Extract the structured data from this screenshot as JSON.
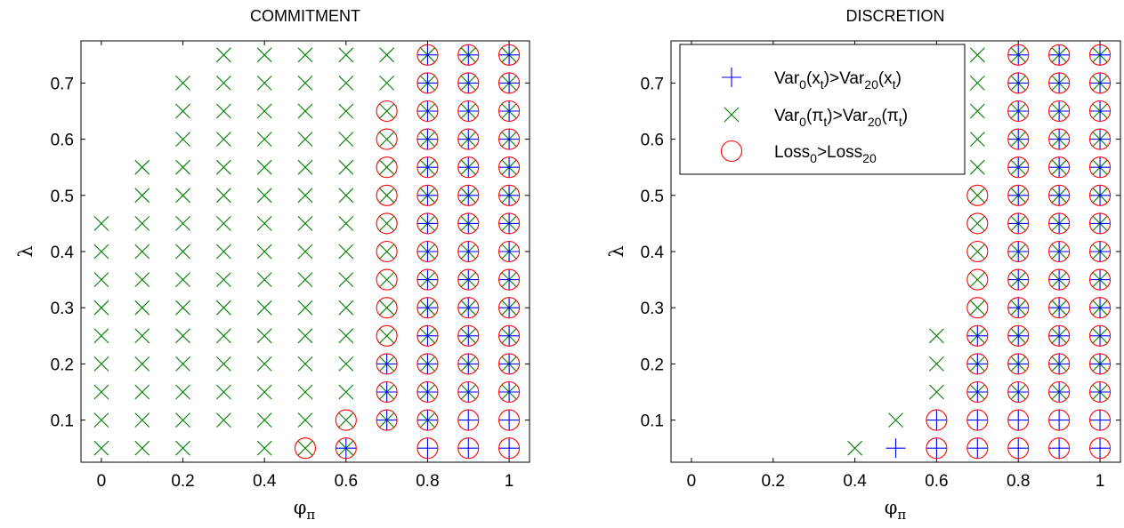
{
  "legend": {
    "entries": [
      {
        "series": "plus",
        "main1": "Var",
        "sub1": "0",
        "mid1": "(x",
        "sub2": "t",
        "mid2": ")>Var",
        "sub3": "20",
        "mid3": "(x",
        "sub4": "t",
        "end": ")"
      },
      {
        "series": "cross",
        "main1": "Var",
        "sub1": "0",
        "mid1": "(π",
        "sub2": "t",
        "mid2": ")>Var",
        "sub3": "20",
        "mid3": "(π",
        "sub4": "t",
        "end": ")"
      },
      {
        "series": "circle",
        "main1": "Loss",
        "sub1": "0",
        "mid1": ">Loss",
        "sub2": "20",
        "mid2": "",
        "sub3": "",
        "mid3": "",
        "sub4": "",
        "end": ""
      }
    ]
  },
  "chart_data": [
    {
      "type": "scatter",
      "title": "COMMITMENT",
      "xlabel": "φ",
      "xlabel_sub": "π",
      "ylabel": "λ",
      "xlim": [
        -0.05,
        1.05
      ],
      "ylim": [
        0.025,
        0.775
      ],
      "xticks": [
        0,
        0.2,
        0.4,
        0.6,
        0.8,
        1
      ],
      "xtick_labels": [
        "0",
        "0.2",
        "0.4",
        "0.6",
        "0.8",
        "1"
      ],
      "yticks": [
        0.1,
        0.2,
        0.3,
        0.4,
        0.5,
        0.6,
        0.7
      ],
      "ytick_labels": [
        "0.1",
        "0.2",
        "0.3",
        "0.4",
        "0.5",
        "0.6",
        "0.7"
      ],
      "grid": false,
      "legend": "none",
      "lambda_grid": [
        0.05,
        0.1,
        0.15,
        0.2,
        0.25,
        0.3,
        0.35,
        0.4,
        0.45,
        0.5,
        0.55,
        0.6,
        0.65,
        0.7,
        0.75
      ],
      "series": [
        {
          "name": "plus",
          "marker": "+",
          "color": "#0000ff",
          "points": [
            [
              0.6,
              [
                0.05
              ]
            ],
            [
              0.7,
              [
                0.1,
                0.15,
                0.2
              ]
            ],
            [
              0.8,
              [
                0.05,
                0.1,
                0.15,
                0.2,
                0.25,
                0.3,
                0.35,
                0.4,
                0.45,
                0.5,
                0.55,
                0.6,
                0.65,
                0.7,
                0.75
              ]
            ],
            [
              0.9,
              [
                0.05,
                0.1,
                0.15,
                0.2,
                0.25,
                0.3,
                0.35,
                0.4,
                0.45,
                0.5,
                0.55,
                0.6,
                0.65,
                0.7,
                0.75
              ]
            ],
            [
              1.0,
              [
                0.05,
                0.1,
                0.15,
                0.2,
                0.25,
                0.3,
                0.35,
                0.4,
                0.45,
                0.5,
                0.55,
                0.6,
                0.65,
                0.7,
                0.75
              ]
            ]
          ]
        },
        {
          "name": "cross",
          "marker": "x",
          "color": "#008000",
          "points": [
            [
              0.0,
              [
                0.05,
                0.1,
                0.15,
                0.2,
                0.25,
                0.3,
                0.35,
                0.4,
                0.45
              ]
            ],
            [
              0.1,
              [
                0.05,
                0.1,
                0.15,
                0.2,
                0.25,
                0.3,
                0.35,
                0.4,
                0.45,
                0.5,
                0.55
              ]
            ],
            [
              0.2,
              [
                0.05,
                0.1,
                0.15,
                0.2,
                0.25,
                0.3,
                0.35,
                0.4,
                0.45,
                0.5,
                0.55,
                0.6,
                0.65,
                0.7
              ]
            ],
            [
              0.3,
              [
                0.1,
                0.15,
                0.2,
                0.25,
                0.3,
                0.35,
                0.4,
                0.45,
                0.5,
                0.55,
                0.6,
                0.65,
                0.7,
                0.75
              ]
            ],
            [
              0.4,
              [
                0.05,
                0.1,
                0.15,
                0.2,
                0.25,
                0.3,
                0.35,
                0.4,
                0.45,
                0.5,
                0.55,
                0.6,
                0.65,
                0.7,
                0.75
              ]
            ],
            [
              0.5,
              [
                0.05,
                0.1,
                0.15,
                0.2,
                0.25,
                0.3,
                0.35,
                0.4,
                0.45,
                0.5,
                0.55,
                0.6,
                0.65,
                0.7,
                0.75
              ]
            ],
            [
              0.6,
              [
                0.05,
                0.1,
                0.15,
                0.2,
                0.25,
                0.3,
                0.35,
                0.4,
                0.45,
                0.5,
                0.55,
                0.6,
                0.65,
                0.7,
                0.75
              ]
            ],
            [
              0.7,
              [
                0.1,
                0.15,
                0.2,
                0.25,
                0.3,
                0.35,
                0.4,
                0.45,
                0.5,
                0.55,
                0.6,
                0.65,
                0.7,
                0.75
              ]
            ],
            [
              0.8,
              [
                0.1,
                0.15,
                0.2,
                0.25,
                0.3,
                0.35,
                0.4,
                0.45,
                0.5,
                0.55,
                0.6,
                0.65,
                0.7,
                0.75
              ]
            ],
            [
              0.9,
              [
                0.15,
                0.2,
                0.25,
                0.3,
                0.35,
                0.4,
                0.45,
                0.5,
                0.55,
                0.6,
                0.65,
                0.7,
                0.75
              ]
            ],
            [
              1.0,
              [
                0.15,
                0.2,
                0.25,
                0.3,
                0.35,
                0.4,
                0.45,
                0.5,
                0.55,
                0.6,
                0.65,
                0.7,
                0.75
              ]
            ]
          ]
        },
        {
          "name": "circle",
          "marker": "o",
          "color": "#ff0000",
          "points": [
            [
              0.5,
              [
                0.05
              ]
            ],
            [
              0.6,
              [
                0.05,
                0.1
              ]
            ],
            [
              0.7,
              [
                0.1,
                0.15,
                0.2,
                0.25,
                0.3,
                0.35,
                0.4,
                0.45,
                0.5,
                0.55,
                0.6,
                0.65
              ]
            ],
            [
              0.8,
              [
                0.05,
                0.1,
                0.15,
                0.2,
                0.25,
                0.3,
                0.35,
                0.4,
                0.45,
                0.5,
                0.55,
                0.6,
                0.65,
                0.7,
                0.75
              ]
            ],
            [
              0.9,
              [
                0.05,
                0.1,
                0.15,
                0.2,
                0.25,
                0.3,
                0.35,
                0.4,
                0.45,
                0.5,
                0.55,
                0.6,
                0.65,
                0.7,
                0.75
              ]
            ],
            [
              1.0,
              [
                0.05,
                0.1,
                0.15,
                0.2,
                0.25,
                0.3,
                0.35,
                0.4,
                0.45,
                0.5,
                0.55,
                0.6,
                0.65,
                0.7,
                0.75
              ]
            ]
          ]
        }
      ]
    },
    {
      "type": "scatter",
      "title": "DISCRETION",
      "xlabel": "φ",
      "xlabel_sub": "π",
      "ylabel": "λ",
      "xlim": [
        -0.05,
        1.05
      ],
      "ylim": [
        0.025,
        0.775
      ],
      "xticks": [
        0,
        0.2,
        0.4,
        0.6,
        0.8,
        1
      ],
      "xtick_labels": [
        "0",
        "0.2",
        "0.4",
        "0.6",
        "0.8",
        "1"
      ],
      "yticks": [
        0.1,
        0.2,
        0.3,
        0.4,
        0.5,
        0.6,
        0.7
      ],
      "ytick_labels": [
        "0.1",
        "0.2",
        "0.3",
        "0.4",
        "0.5",
        "0.6",
        "0.7"
      ],
      "grid": false,
      "legend": "top-left",
      "series": [
        {
          "name": "plus",
          "marker": "+",
          "color": "#0000ff",
          "points": [
            [
              0.5,
              [
                0.05
              ]
            ],
            [
              0.6,
              [
                0.05,
                0.1
              ]
            ],
            [
              0.7,
              [
                0.05,
                0.1,
                0.15,
                0.2,
                0.25
              ]
            ],
            [
              0.8,
              [
                0.05,
                0.1,
                0.15,
                0.2,
                0.25,
                0.3,
                0.35,
                0.4,
                0.45,
                0.5,
                0.55,
                0.6,
                0.65,
                0.7,
                0.75
              ]
            ],
            [
              0.9,
              [
                0.05,
                0.1,
                0.15,
                0.2,
                0.25,
                0.3,
                0.35,
                0.4,
                0.45,
                0.5,
                0.55,
                0.6,
                0.65,
                0.7,
                0.75
              ]
            ],
            [
              1.0,
              [
                0.05,
                0.1,
                0.15,
                0.2,
                0.25,
                0.3,
                0.35,
                0.4,
                0.45,
                0.5,
                0.55,
                0.6,
                0.65,
                0.7,
                0.75
              ]
            ]
          ]
        },
        {
          "name": "cross",
          "marker": "x",
          "color": "#008000",
          "points": [
            [
              0.4,
              [
                0.05
              ]
            ],
            [
              0.5,
              [
                0.1
              ]
            ],
            [
              0.6,
              [
                0.15,
                0.2,
                0.25
              ]
            ],
            [
              0.7,
              [
                0.15,
                0.2,
                0.25,
                0.3,
                0.35,
                0.4,
                0.45,
                0.5,
                0.55,
                0.6,
                0.65,
                0.7,
                0.75
              ]
            ],
            [
              0.8,
              [
                0.15,
                0.2,
                0.25,
                0.3,
                0.35,
                0.4,
                0.45,
                0.5,
                0.55,
                0.6,
                0.65,
                0.7,
                0.75
              ]
            ],
            [
              0.9,
              [
                0.15,
                0.2,
                0.25,
                0.3,
                0.35,
                0.4,
                0.45,
                0.5,
                0.55,
                0.6,
                0.65,
                0.7,
                0.75
              ]
            ],
            [
              1.0,
              [
                0.15,
                0.2,
                0.25,
                0.3,
                0.35,
                0.4,
                0.45,
                0.5,
                0.55,
                0.6,
                0.65,
                0.7,
                0.75
              ]
            ]
          ]
        },
        {
          "name": "circle",
          "marker": "o",
          "color": "#ff0000",
          "points": [
            [
              0.6,
              [
                0.05,
                0.1
              ]
            ],
            [
              0.7,
              [
                0.05,
                0.1,
                0.15,
                0.2,
                0.25,
                0.3,
                0.35,
                0.4,
                0.45,
                0.5
              ]
            ],
            [
              0.8,
              [
                0.05,
                0.1,
                0.15,
                0.2,
                0.25,
                0.3,
                0.35,
                0.4,
                0.45,
                0.5,
                0.55,
                0.6,
                0.65,
                0.7,
                0.75
              ]
            ],
            [
              0.9,
              [
                0.05,
                0.1,
                0.15,
                0.2,
                0.25,
                0.3,
                0.35,
                0.4,
                0.45,
                0.5,
                0.55,
                0.6,
                0.65,
                0.7,
                0.75
              ]
            ],
            [
              1.0,
              [
                0.05,
                0.1,
                0.15,
                0.2,
                0.25,
                0.3,
                0.35,
                0.4,
                0.45,
                0.5,
                0.55,
                0.6,
                0.65,
                0.7,
                0.75
              ]
            ]
          ]
        }
      ]
    }
  ]
}
